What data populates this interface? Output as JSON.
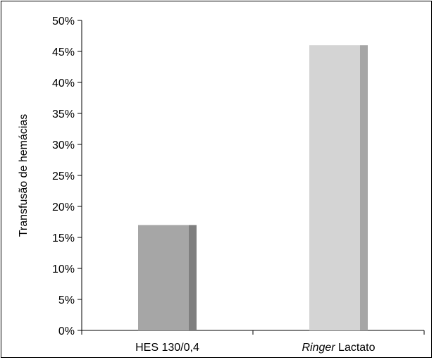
{
  "chart_data": {
    "type": "bar",
    "title": "",
    "xlabel": "",
    "ylabel": "Transfusão de hemácias",
    "ylim": [
      0,
      0.5
    ],
    "y_ticks": [
      "0%",
      "5%",
      "10%",
      "15%",
      "20%",
      "25%",
      "30%",
      "35%",
      "40%",
      "45%",
      "50%"
    ],
    "categories": [
      "HES 130/0,4",
      "Ringer Lactato"
    ],
    "category_labels": [
      {
        "italic": "",
        "rest": "HES 130/0,4"
      },
      {
        "italic": "Ringer",
        "rest": " Lactato"
      }
    ],
    "values": [
      0.17,
      0.46
    ],
    "colors": [
      {
        "front": "#a6a6a6",
        "side": "#7f7f7f"
      },
      {
        "front": "#d4d4d4",
        "side": "#a6a6a6"
      }
    ],
    "grid": false,
    "legend": "none"
  }
}
